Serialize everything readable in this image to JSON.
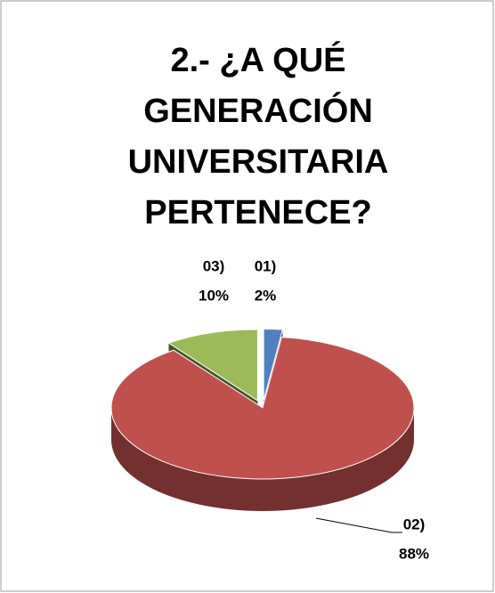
{
  "chart_data": {
    "type": "pie",
    "title": "2.- ¿A QUÉ GENERACIÓN UNIVERSITARIA PERTENECE?",
    "categories": [
      "01)",
      "02)",
      "03)"
    ],
    "values": [
      2,
      88,
      10
    ],
    "value_labels": [
      "2%",
      "88%",
      "10%"
    ],
    "colors": [
      "#4f81bd",
      "#c0504d",
      "#9bbb59"
    ]
  }
}
